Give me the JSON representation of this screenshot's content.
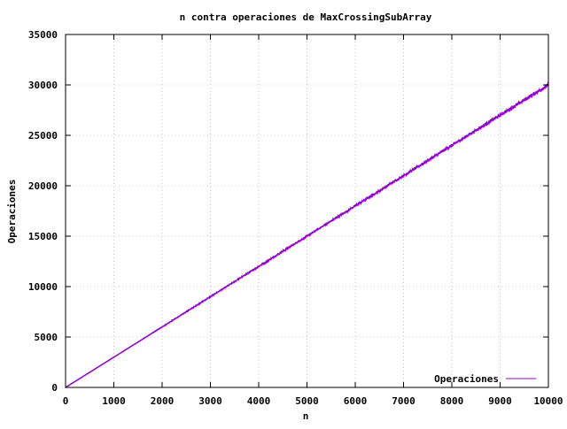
{
  "chart_data": {
    "type": "line",
    "title": "n contra operaciones de MaxCrossingSubArray",
    "xlabel": "n",
    "ylabel": "Operaciones",
    "xlim": [
      0,
      10000
    ],
    "ylim": [
      0,
      35000
    ],
    "x_ticks": [
      0,
      1000,
      2000,
      3000,
      4000,
      5000,
      6000,
      7000,
      8000,
      9000,
      10000
    ],
    "y_ticks": [
      0,
      5000,
      10000,
      15000,
      20000,
      25000,
      30000,
      35000
    ],
    "grid": "dashed",
    "legend": "bottom-right",
    "series": [
      {
        "name": "Operaciones",
        "color": "#9400d3",
        "x": [
          0,
          500,
          1000,
          1500,
          2000,
          2500,
          3000,
          3500,
          4000,
          4500,
          5000,
          5500,
          6000,
          6500,
          7000,
          7500,
          8000,
          8500,
          9000,
          9500,
          10000
        ],
        "y": [
          0,
          1500,
          3000,
          4500,
          6000,
          7500,
          9000,
          10500,
          12000,
          13500,
          15000,
          16500,
          18000,
          19500,
          21000,
          22500,
          24000,
          25500,
          27000,
          28500,
          30000
        ],
        "noise": 400
      }
    ]
  }
}
